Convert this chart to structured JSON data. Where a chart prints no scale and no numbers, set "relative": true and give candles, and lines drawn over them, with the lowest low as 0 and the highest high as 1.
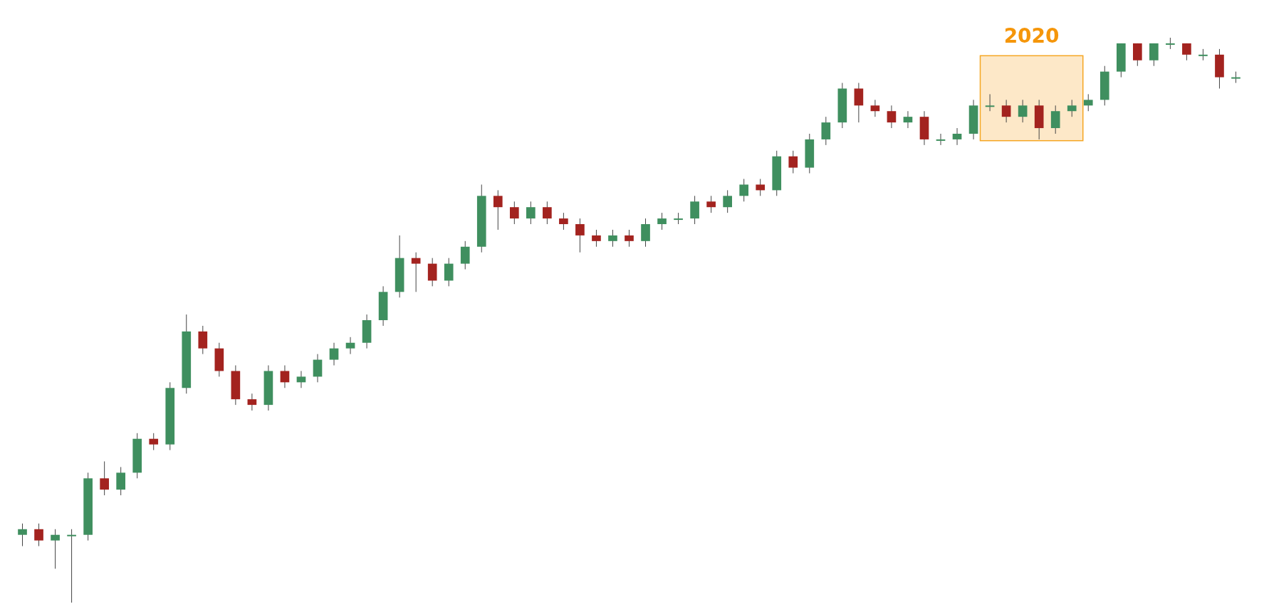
{
  "chart_data": {
    "type": "candlestick",
    "relative": true,
    "categories": [
      null,
      null,
      null,
      null,
      null,
      null,
      null,
      null,
      null,
      null,
      null,
      null,
      null,
      null,
      null,
      null,
      null,
      null,
      null,
      null,
      null,
      null,
      null,
      null,
      null,
      null,
      null,
      null,
      null,
      null,
      null,
      null,
      null,
      null,
      null,
      null,
      null,
      null,
      null,
      null,
      null,
      null,
      null,
      null,
      null,
      null,
      null,
      null,
      null,
      null,
      null,
      null,
      null,
      null,
      null,
      null,
      null,
      null,
      null,
      null,
      null,
      null,
      null,
      null,
      null,
      null,
      null,
      null,
      null,
      null,
      null,
      null,
      null,
      null,
      null
    ],
    "ohlc": [
      [
        0.12,
        0.14,
        0.1,
        0.13
      ],
      [
        0.13,
        0.14,
        0.1,
        0.11
      ],
      [
        0.11,
        0.13,
        0.06,
        0.12
      ],
      [
        0.12,
        0.13,
        0.0,
        0.12
      ],
      [
        0.12,
        0.23,
        0.11,
        0.22
      ],
      [
        0.22,
        0.25,
        0.19,
        0.2
      ],
      [
        0.2,
        0.24,
        0.19,
        0.23
      ],
      [
        0.23,
        0.3,
        0.22,
        0.29
      ],
      [
        0.29,
        0.3,
        0.27,
        0.28
      ],
      [
        0.28,
        0.39,
        0.27,
        0.38
      ],
      [
        0.38,
        0.51,
        0.37,
        0.48
      ],
      [
        0.48,
        0.49,
        0.44,
        0.45
      ],
      [
        0.45,
        0.46,
        0.4,
        0.41
      ],
      [
        0.41,
        0.42,
        0.35,
        0.36
      ],
      [
        0.36,
        0.37,
        0.34,
        0.35
      ],
      [
        0.35,
        0.42,
        0.34,
        0.41
      ],
      [
        0.41,
        0.42,
        0.38,
        0.39
      ],
      [
        0.39,
        0.41,
        0.38,
        0.4
      ],
      [
        0.4,
        0.44,
        0.39,
        0.43
      ],
      [
        0.43,
        0.46,
        0.42,
        0.45
      ],
      [
        0.45,
        0.47,
        0.44,
        0.46
      ],
      [
        0.46,
        0.51,
        0.45,
        0.5
      ],
      [
        0.5,
        0.56,
        0.49,
        0.55
      ],
      [
        0.55,
        0.65,
        0.54,
        0.61
      ],
      [
        0.61,
        0.62,
        0.55,
        0.6
      ],
      [
        0.6,
        0.61,
        0.56,
        0.57
      ],
      [
        0.57,
        0.61,
        0.56,
        0.6
      ],
      [
        0.6,
        0.64,
        0.59,
        0.63
      ],
      [
        0.63,
        0.74,
        0.62,
        0.72
      ],
      [
        0.72,
        0.73,
        0.66,
        0.7
      ],
      [
        0.7,
        0.71,
        0.67,
        0.68
      ],
      [
        0.68,
        0.71,
        0.67,
        0.7
      ],
      [
        0.7,
        0.71,
        0.67,
        0.68
      ],
      [
        0.68,
        0.69,
        0.66,
        0.67
      ],
      [
        0.67,
        0.68,
        0.62,
        0.65
      ],
      [
        0.65,
        0.66,
        0.63,
        0.64
      ],
      [
        0.64,
        0.66,
        0.63,
        0.65
      ],
      [
        0.65,
        0.66,
        0.63,
        0.64
      ],
      [
        0.64,
        0.68,
        0.63,
        0.67
      ],
      [
        0.67,
        0.69,
        0.66,
        0.68
      ],
      [
        0.68,
        0.69,
        0.67,
        0.68
      ],
      [
        0.68,
        0.72,
        0.67,
        0.71
      ],
      [
        0.71,
        0.72,
        0.69,
        0.7
      ],
      [
        0.7,
        0.73,
        0.69,
        0.72
      ],
      [
        0.72,
        0.75,
        0.71,
        0.74
      ],
      [
        0.74,
        0.75,
        0.72,
        0.73
      ],
      [
        0.73,
        0.8,
        0.72,
        0.79
      ],
      [
        0.79,
        0.8,
        0.76,
        0.77
      ],
      [
        0.77,
        0.83,
        0.76,
        0.82
      ],
      [
        0.82,
        0.86,
        0.81,
        0.85
      ],
      [
        0.85,
        0.92,
        0.84,
        0.91
      ],
      [
        0.91,
        0.92,
        0.85,
        0.88
      ],
      [
        0.88,
        0.89,
        0.86,
        0.87
      ],
      [
        0.87,
        0.88,
        0.84,
        0.85
      ],
      [
        0.85,
        0.87,
        0.84,
        0.86
      ],
      [
        0.86,
        0.87,
        0.81,
        0.82
      ],
      [
        0.82,
        0.83,
        0.81,
        0.82
      ],
      [
        0.82,
        0.84,
        0.81,
        0.83
      ],
      [
        0.83,
        0.89,
        0.82,
        0.88
      ],
      [
        0.88,
        0.9,
        0.87,
        0.88
      ],
      [
        0.88,
        0.89,
        0.85,
        0.86
      ],
      [
        0.86,
        0.89,
        0.85,
        0.88
      ],
      [
        0.88,
        0.89,
        0.82,
        0.84
      ],
      [
        0.84,
        0.88,
        0.83,
        0.87
      ],
      [
        0.87,
        0.89,
        0.86,
        0.88
      ],
      [
        0.88,
        0.9,
        0.87,
        0.89
      ],
      [
        0.89,
        0.95,
        0.88,
        0.94
      ],
      [
        0.94,
        0.99,
        0.93,
        0.99
      ],
      [
        0.99,
        0.99,
        0.95,
        0.96
      ],
      [
        0.96,
        0.99,
        0.95,
        0.99
      ],
      [
        0.99,
        1.0,
        0.98,
        0.99
      ],
      [
        0.99,
        0.99,
        0.96,
        0.97
      ],
      [
        0.97,
        0.98,
        0.96,
        0.97
      ],
      [
        0.97,
        0.98,
        0.91,
        0.93
      ],
      [
        0.93,
        0.94,
        0.92,
        0.93
      ]
    ],
    "annotations": [
      "2020"
    ]
  }
}
